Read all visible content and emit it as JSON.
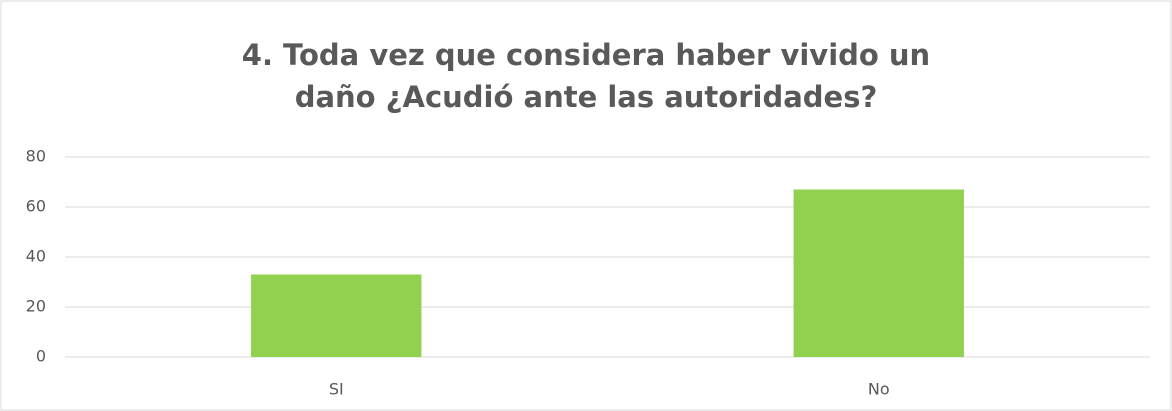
{
  "chart_data": {
    "type": "bar",
    "title": "4. Toda vez que considera haber vivido un daño ¿Acudió ante las autoridades?",
    "categories": [
      "SI",
      "No"
    ],
    "values": [
      33,
      67
    ],
    "color": "#92d050",
    "ylim": [
      0,
      80
    ],
    "yticks": [
      0,
      20,
      40,
      60,
      80
    ],
    "grid": true
  }
}
